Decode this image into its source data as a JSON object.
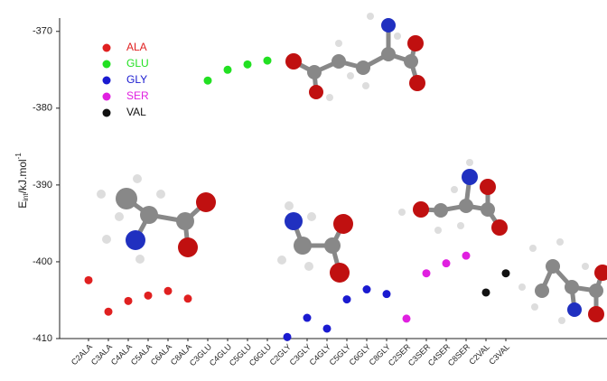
{
  "chart_data": {
    "type": "scatter",
    "ylabel": [
      "E",
      "int",
      "/kJ.mol",
      "-1"
    ],
    "categories": [
      "C2ALA",
      "C3ALA",
      "C4ALA",
      "C5ALA",
      "C6ALA",
      "C8ALA",
      "C3GLU",
      "C4GLU",
      "C5GLU",
      "C6GLU",
      "C2GLY",
      "C3GLY",
      "C4GLY",
      "C5GLY",
      "C6GLY",
      "C8GLY",
      "C2SER",
      "C3SER",
      "C4SER",
      "C8SER",
      "C2VAL",
      "C3VAL"
    ],
    "ylim": [
      -410,
      -368.5
    ],
    "yticks": [
      -370,
      -380,
      -390,
      -400,
      -410
    ],
    "legend": "upper left",
    "series": [
      {
        "name": "ALA",
        "color": "#e02020",
        "values": [
          -402.4,
          -406.5,
          -405.1,
          -404.4,
          -403.8,
          -404.8,
          null,
          null,
          null,
          null,
          null,
          null,
          null,
          null,
          null,
          null,
          null,
          null,
          null,
          null,
          null,
          null
        ]
      },
      {
        "name": "GLU",
        "color": "#22e022",
        "values": [
          null,
          null,
          null,
          null,
          null,
          null,
          -376.4,
          -375,
          -374.3,
          -373.8,
          null,
          null,
          null,
          null,
          null,
          null,
          null,
          null,
          null,
          null,
          null,
          null
        ]
      },
      {
        "name": "GLY",
        "color": "#1a1ad0",
        "values": [
          null,
          null,
          null,
          null,
          null,
          null,
          null,
          null,
          null,
          null,
          -409.8,
          -407.3,
          -408.7,
          -404.9,
          -403.6,
          -404.2,
          null,
          null,
          null,
          null,
          null,
          null
        ]
      },
      {
        "name": "SER",
        "color": "#e020e0",
        "values": [
          null,
          null,
          null,
          null,
          null,
          null,
          null,
          null,
          null,
          null,
          null,
          null,
          null,
          null,
          null,
          null,
          -407.4,
          -401.5,
          -400.2,
          -399.2,
          null,
          null
        ]
      },
      {
        "name": "VAL",
        "color": "#111111",
        "values": [
          null,
          null,
          null,
          null,
          null,
          null,
          null,
          null,
          null,
          null,
          null,
          null,
          null,
          null,
          null,
          null,
          null,
          null,
          null,
          null,
          -404,
          -401.5
        ]
      }
    ]
  }
}
